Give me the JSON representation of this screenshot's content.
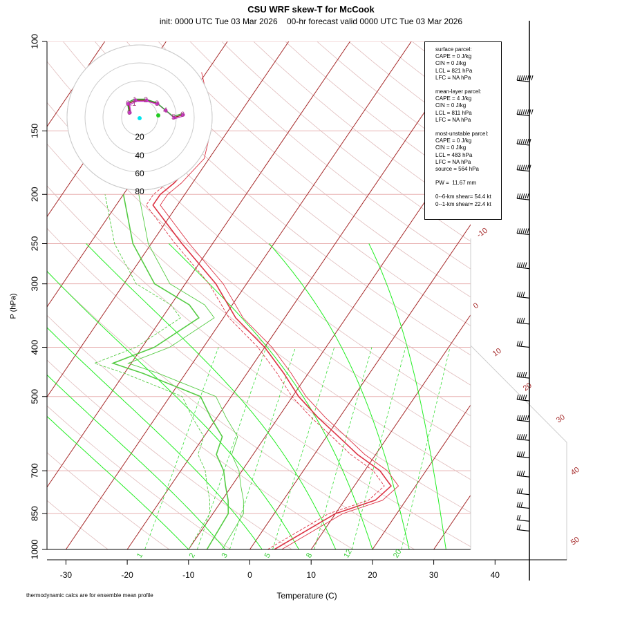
{
  "title": "CSU WRF skew-T for McCook",
  "subtitle": "init: 0000 UTC Tue 03 Mar 2026    00-hr forecast valid 0000 UTC Tue 03 Mar 2026",
  "footnote": "thermodynamic calcs are for ensemble mean profile",
  "info_box": {
    "surface_header": "surface parcel:",
    "surface": [
      "CAPE = 0 J/kg",
      "CIN = 0 J/kg",
      "LCL = 821 hPa",
      "LFC = NA hPa"
    ],
    "mean_layer_header": "mean-layer parcel:",
    "mean_layer": [
      "CAPE = 4 J/kg",
      "CIN = 0 J/kg",
      "LCL = 811 hPa",
      "LFC = NA hPa"
    ],
    "most_unstable_header": "most-unstable parcel:",
    "most_unstable": [
      "CAPE = 0 J/kg",
      "CIN = 0 J/kg",
      "LCL = 483 hPa",
      "LFC = NA hPa",
      "source = 564 hPa"
    ],
    "pw": "PW =  11.67 mm",
    "shear_6km": "0--6-km shear= 54.4 kt",
    "shear_1km": "0--1-km shear= 22.4 kt"
  },
  "hodograph": {
    "ring_labels": [
      "20",
      "40",
      "60",
      "80"
    ],
    "point_labels": [
      "0",
      "0.1",
      "1",
      "2",
      "3",
      "4",
      "5",
      "6"
    ]
  },
  "colors": {
    "isotherm": "#a62a2a",
    "isobar": "#e8b0b0",
    "dry_adiabat": "#e0bcbc",
    "moist_adiabat": "#22ee22",
    "mixing_ratio": "#33dd33",
    "temperature": "#dd3344",
    "dewpoint": "#55cc44",
    "wind_barb": "#000000"
  },
  "chart_data": {
    "type": "line",
    "title": "CSU WRF skew-T for McCook",
    "xlabel": "Temperature (C)",
    "ylabel": "P (hPa)",
    "x_ticks": [
      -30,
      -20,
      -10,
      0,
      10,
      20,
      30,
      40
    ],
    "y_ticks": [
      100,
      150,
      200,
      250,
      300,
      400,
      500,
      700,
      850,
      1000
    ],
    "xlim": [
      -33,
      36
    ],
    "ylim": [
      1000,
      100
    ],
    "y_scale": "log",
    "skewed_isotherms": [
      -100,
      -90,
      -80,
      -70,
      -60,
      -50,
      -40,
      -30,
      -20,
      -10,
      0,
      10,
      20,
      30,
      40,
      50
    ],
    "isotherm_labels": [
      "-10",
      "0",
      "10",
      "20",
      "30",
      "40",
      "50"
    ],
    "mixing_ratio_labels": [
      "1",
      "2",
      "3",
      "5",
      "8",
      "12",
      "20"
    ],
    "series": [
      {
        "name": "temperature",
        "p": [
          1000,
          850,
          830,
          800,
          750,
          700,
          650,
          600,
          550,
          500,
          450,
          400,
          350,
          300,
          250,
          210,
          200,
          190,
          170,
          150,
          130,
          115
        ],
        "t": [
          4,
          10,
          12,
          15,
          16,
          12.5,
          7,
          2,
          -3.5,
          -9,
          -14,
          -20,
          -28,
          -35,
          -45,
          -54,
          -54,
          -53,
          -52,
          -54,
          -58,
          -62
        ]
      },
      {
        "name": "dewpoint",
        "p": [
          1000,
          850,
          800,
          750,
          700,
          650,
          600,
          550,
          500,
          450,
          430,
          400,
          350,
          330,
          300,
          250,
          200
        ],
        "t": [
          -7,
          -7.5,
          -9,
          -11,
          -13,
          -16,
          -17,
          -21,
          -25,
          -37,
          -43,
          -38,
          -34,
          -37,
          -45,
          -53,
          -60
        ]
      }
    ],
    "wind_barbs": {
      "pressure": [
        120,
        140,
        160,
        180,
        205,
        240,
        280,
        320,
        360,
        400,
        460,
        510,
        560,
        610,
        660,
        720,
        780,
        830,
        880,
        920
      ],
      "speed_kt": [
        75,
        75,
        70,
        65,
        60,
        55,
        45,
        40,
        35,
        30,
        45,
        50,
        55,
        45,
        40,
        40,
        30,
        25,
        20,
        15
      ]
    }
  }
}
